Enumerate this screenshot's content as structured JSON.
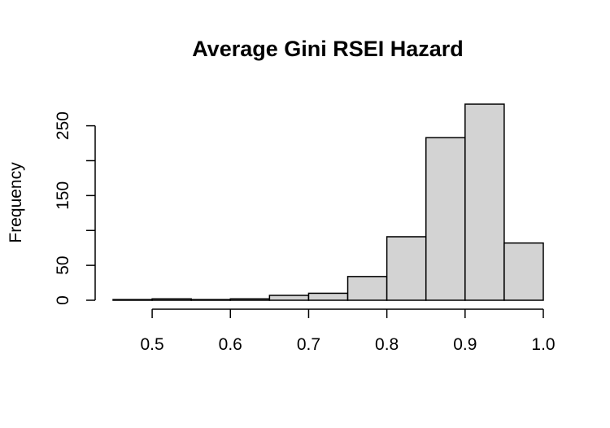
{
  "chart_data": {
    "type": "bar",
    "title": "Average Gini RSEI Hazard",
    "xlabel": "",
    "ylabel": "Frequency",
    "bins": [
      {
        "x0": 0.45,
        "x1": 0.5,
        "count": 1
      },
      {
        "x0": 0.5,
        "x1": 0.55,
        "count": 2
      },
      {
        "x0": 0.55,
        "x1": 0.6,
        "count": 1
      },
      {
        "x0": 0.6,
        "x1": 0.65,
        "count": 2
      },
      {
        "x0": 0.65,
        "x1": 0.7,
        "count": 7
      },
      {
        "x0": 0.7,
        "x1": 0.75,
        "count": 10
      },
      {
        "x0": 0.75,
        "x1": 0.8,
        "count": 34
      },
      {
        "x0": 0.8,
        "x1": 0.85,
        "count": 91
      },
      {
        "x0": 0.85,
        "x1": 0.9,
        "count": 233
      },
      {
        "x0": 0.9,
        "x1": 0.95,
        "count": 281
      },
      {
        "x0": 0.95,
        "x1": 1.0,
        "count": 82
      }
    ],
    "xlim": [
      0.45,
      1.0
    ],
    "ylim": [
      0,
      281
    ],
    "x_ticks": [
      0.5,
      0.6,
      0.7,
      0.8,
      0.9,
      1.0
    ],
    "x_tick_labels": [
      "0.5",
      "0.6",
      "0.7",
      "0.8",
      "0.9",
      "1.0"
    ],
    "y_ticks": [
      0,
      50,
      100,
      150,
      200,
      250
    ],
    "y_tick_labels": [
      "0",
      "50",
      "",
      "150",
      "",
      "250"
    ],
    "grid": false,
    "legend": "none"
  }
}
